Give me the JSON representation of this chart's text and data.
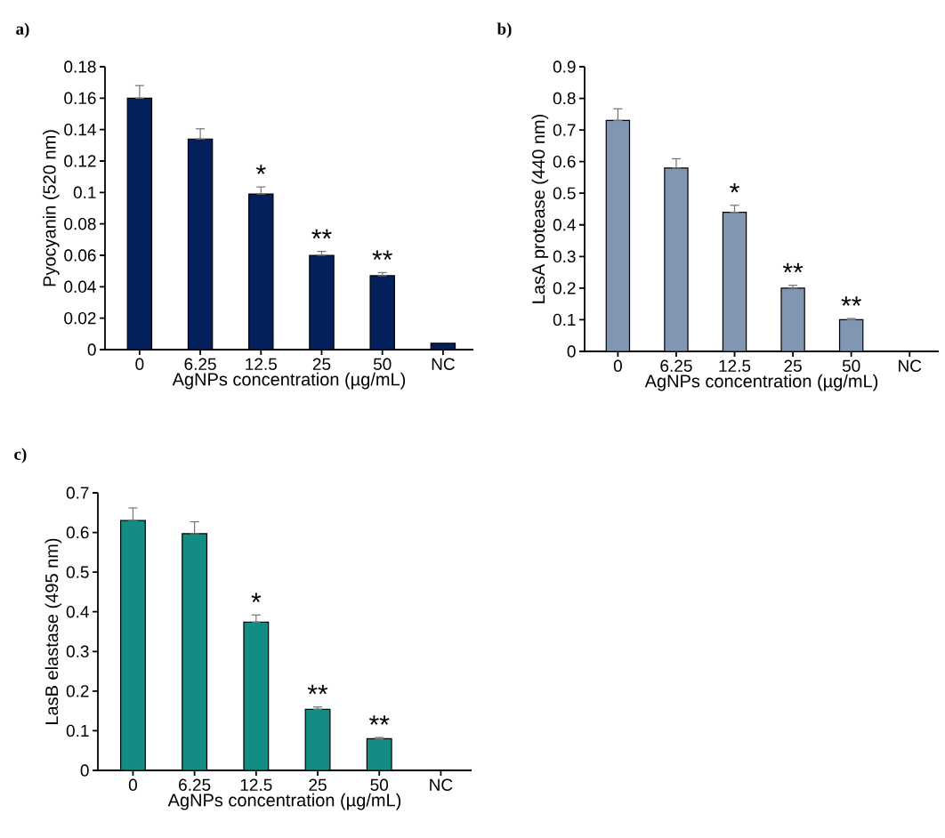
{
  "chart_data": [
    {
      "type": "bar",
      "title": "a)",
      "xlabel": "AgNPs concentration (µg/mL)",
      "ylabel": "Pyocyanin (520 nm)",
      "categories": [
        "0",
        "6.25",
        "12.5",
        "25",
        "50",
        "NC"
      ],
      "color": "#03205c",
      "values": [
        0.16,
        0.134,
        0.099,
        0.06,
        0.047,
        0.004
      ],
      "errors": [
        [
          0.16,
          0.168
        ],
        [
          0.134,
          0.1405
        ],
        [
          0.099,
          0.1035
        ],
        [
          0.06,
          0.0625
        ],
        [
          0.047,
          0.049
        ],
        null
      ],
      "value_labels": [
        null,
        null,
        "*",
        "**",
        "**",
        null
      ],
      "ylim": [
        0,
        0.18
      ],
      "yticks": [
        0,
        0.02,
        0.04,
        0.06,
        0.08,
        0.1,
        0.12,
        0.14,
        0.16,
        0.18
      ]
    },
    {
      "type": "bar",
      "title": "b)",
      "xlabel": "AgNPs concentration (µg/mL)",
      "ylabel": "LasA protease (440 nm)",
      "categories": [
        "0",
        "6.25",
        "12.5",
        "25",
        "50",
        "NC"
      ],
      "color": "#8196b2",
      "values": [
        0.73,
        0.58,
        0.44,
        0.2,
        0.1,
        0.001
      ],
      "errors": [
        [
          0.73,
          0.767
        ],
        [
          0.58,
          0.609
        ],
        [
          0.44,
          0.462
        ],
        [
          0.2,
          0.209
        ],
        [
          0.1,
          0.104
        ],
        null
      ],
      "value_labels": [
        null,
        null,
        "*",
        "**",
        "**",
        null
      ],
      "ylim": [
        0,
        0.9
      ],
      "yticks": [
        0,
        0.1,
        0.2,
        0.3,
        0.4,
        0.5,
        0.6,
        0.7,
        0.8,
        0.9
      ]
    },
    {
      "type": "bar",
      "title": "c)",
      "xlabel": "AgNPs concentration (µg/mL)",
      "ylabel": "LasB elastase (495 nm)",
      "categories": [
        "0",
        "6.25",
        "12.5",
        "25",
        "50",
        "NC"
      ],
      "color": "#138c85",
      "values": [
        0.63,
        0.597,
        0.374,
        0.154,
        0.08,
        0.001
      ],
      "errors": [
        [
          0.63,
          0.662
        ],
        [
          0.597,
          0.627
        ],
        [
          0.374,
          0.392
        ],
        [
          0.154,
          0.16
        ],
        [
          0.08,
          0.083
        ],
        null
      ],
      "value_labels": [
        null,
        null,
        "*",
        "**",
        "**",
        null
      ],
      "ylim": [
        0,
        0.7
      ],
      "yticks": [
        0,
        0.1,
        0.2,
        0.3,
        0.4,
        0.5,
        0.6,
        0.7
      ]
    }
  ]
}
